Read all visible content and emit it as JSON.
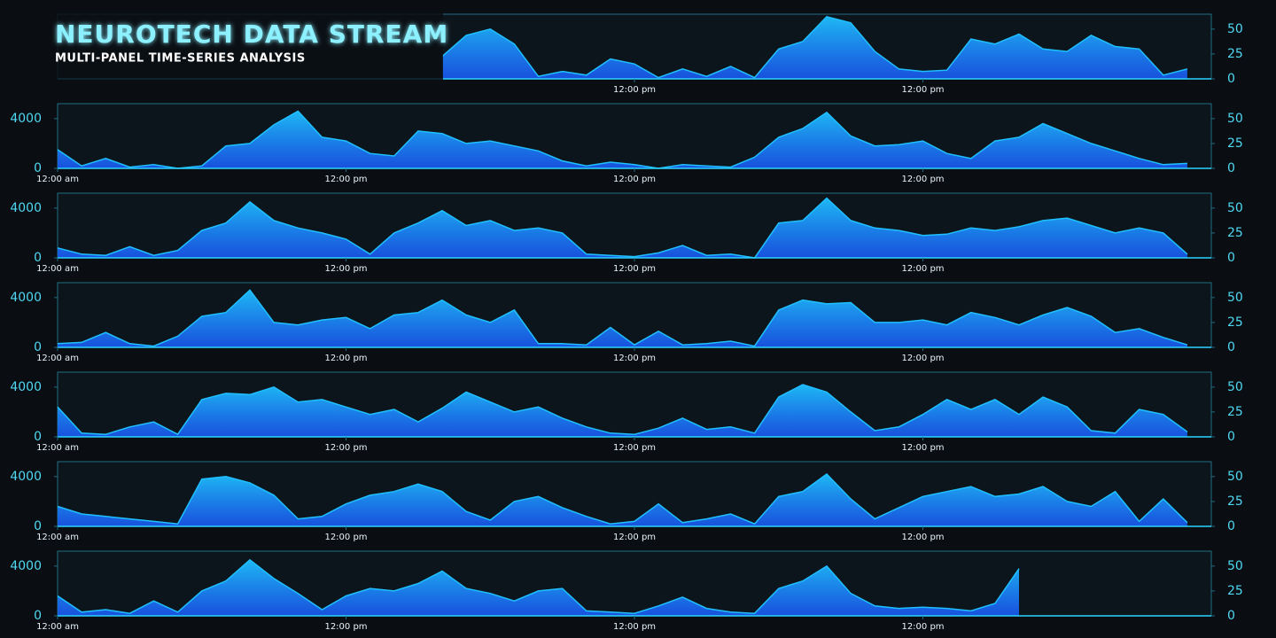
{
  "title": "NEUROTECH DATA STREAM",
  "subtitle": "MULTI-PANEL TIME-SERIES ANALYSIS",
  "chart_data": [
    {
      "type": "area",
      "color": "#1fc0ff",
      "xlim": [
        0,
        48
      ],
      "ylim": [
        0,
        5200
      ],
      "y2lim": [
        0,
        65
      ],
      "y2ticks": [
        0,
        25,
        50
      ],
      "xticks": [
        {
          "value": 24,
          "label": "12:00 pm"
        },
        {
          "value": 36,
          "label": "12:00 pm"
        }
      ],
      "x": [
        16,
        17,
        18,
        19,
        20,
        21,
        22,
        23,
        24,
        25,
        26,
        27,
        28,
        29,
        30,
        31,
        32,
        33,
        34,
        35,
        36,
        37,
        38,
        39,
        40,
        41,
        42,
        43,
        44,
        45,
        46,
        47
      ],
      "values": [
        1800,
        3500,
        4000,
        2800,
        200,
        600,
        300,
        1600,
        1200,
        100,
        800,
        200,
        1000,
        100,
        2400,
        3000,
        5000,
        4500,
        2200,
        800,
        600,
        700,
        3200,
        2800,
        3600,
        2400,
        2200,
        3500,
        2600,
        2400,
        300,
        800
      ]
    },
    {
      "type": "area",
      "color": "#1fc0ff",
      "xlim": [
        0,
        48
      ],
      "ylim": [
        0,
        5200
      ],
      "yticks": [
        0,
        4000
      ],
      "y2lim": [
        0,
        65
      ],
      "y2ticks": [
        0,
        25,
        50
      ],
      "xticks": [
        {
          "value": 0,
          "label": "12:00 am"
        },
        {
          "value": 12,
          "label": "12:00 pm"
        },
        {
          "value": 24,
          "label": "12:00 pm"
        },
        {
          "value": 36,
          "label": "12:00 pm"
        }
      ],
      "x": [
        0,
        1,
        2,
        3,
        4,
        5,
        6,
        7,
        8,
        9,
        10,
        11,
        12,
        13,
        14,
        15,
        16,
        17,
        18,
        19,
        20,
        21,
        22,
        23,
        24,
        25,
        26,
        27,
        28,
        29,
        30,
        31,
        32,
        33,
        34,
        35,
        36,
        37,
        38,
        39,
        40,
        41,
        42,
        43,
        44,
        45,
        46,
        47
      ],
      "values": [
        1500,
        200,
        800,
        100,
        300,
        0,
        200,
        1800,
        2000,
        3500,
        4600,
        2500,
        2200,
        1200,
        1000,
        3000,
        2800,
        2000,
        2200,
        1800,
        1400,
        600,
        200,
        500,
        300,
        0,
        300,
        200,
        100,
        900,
        2500,
        3200,
        4500,
        2600,
        1800,
        1900,
        2200,
        1200,
        800,
        2200,
        2500,
        3600,
        2800,
        2000,
        1400,
        800,
        300,
        400
      ]
    },
    {
      "type": "area",
      "color": "#1fc0ff",
      "xlim": [
        0,
        48
      ],
      "ylim": [
        0,
        5200
      ],
      "yticks": [
        0,
        4000
      ],
      "y2lim": [
        0,
        65
      ],
      "y2ticks": [
        0,
        25,
        50
      ],
      "xticks": [
        {
          "value": 0,
          "label": "12:00 am"
        },
        {
          "value": 12,
          "label": "12:00 pm"
        },
        {
          "value": 24,
          "label": "12:00 pm"
        },
        {
          "value": 36,
          "label": "12:00 pm"
        }
      ],
      "x": [
        0,
        1,
        2,
        3,
        4,
        5,
        6,
        7,
        8,
        9,
        10,
        11,
        12,
        13,
        14,
        15,
        16,
        17,
        18,
        19,
        20,
        21,
        22,
        23,
        24,
        25,
        26,
        27,
        28,
        29,
        30,
        31,
        32,
        33,
        34,
        35,
        36,
        37,
        38,
        39,
        40,
        41,
        42,
        43,
        44,
        45,
        46,
        47
      ],
      "values": [
        800,
        300,
        200,
        900,
        200,
        600,
        2200,
        2800,
        4500,
        3000,
        2400,
        2000,
        1500,
        300,
        2000,
        2800,
        3800,
        2600,
        3000,
        2200,
        2400,
        2000,
        300,
        200,
        100,
        400,
        1000,
        200,
        300,
        0,
        2800,
        3000,
        4800,
        3000,
        2400,
        2200,
        1800,
        1900,
        2400,
        2200,
        2500,
        3000,
        3200,
        2600,
        2000,
        2400,
        2000,
        300
      ]
    },
    {
      "type": "area",
      "color": "#1fc0ff",
      "xlim": [
        0,
        48
      ],
      "ylim": [
        0,
        5200
      ],
      "yticks": [
        0,
        4000
      ],
      "y2lim": [
        0,
        65
      ],
      "y2ticks": [
        0,
        25,
        50
      ],
      "xticks": [
        {
          "value": 0,
          "label": "12:00 am"
        },
        {
          "value": 12,
          "label": "12:00 pm"
        },
        {
          "value": 24,
          "label": "12:00 pm"
        },
        {
          "value": 36,
          "label": "12:00 pm"
        }
      ],
      "x": [
        0,
        1,
        2,
        3,
        4,
        5,
        6,
        7,
        8,
        9,
        10,
        11,
        12,
        13,
        14,
        15,
        16,
        17,
        18,
        19,
        20,
        21,
        22,
        23,
        24,
        25,
        26,
        27,
        28,
        29,
        30,
        31,
        32,
        33,
        34,
        35,
        36,
        37,
        38,
        39,
        40,
        41,
        42,
        43,
        44,
        45,
        46,
        47
      ],
      "values": [
        300,
        400,
        1200,
        300,
        100,
        900,
        2500,
        2800,
        4600,
        2000,
        1800,
        2200,
        2400,
        1500,
        2600,
        2800,
        3800,
        2600,
        2000,
        3000,
        300,
        300,
        200,
        1600,
        200,
        1300,
        200,
        300,
        500,
        100,
        3000,
        3800,
        3500,
        3600,
        2000,
        2000,
        2200,
        1800,
        2800,
        2400,
        1800,
        2600,
        3200,
        2500,
        1200,
        1500,
        800,
        200
      ]
    },
    {
      "type": "area",
      "color": "#1fc0ff",
      "xlim": [
        0,
        48
      ],
      "ylim": [
        0,
        5200
      ],
      "yticks": [
        0,
        4000
      ],
      "y2lim": [
        0,
        65
      ],
      "y2ticks": [
        0,
        25,
        50
      ],
      "xticks": [
        {
          "value": 0,
          "label": "12:00 am"
        },
        {
          "value": 12,
          "label": "12:00 pm"
        },
        {
          "value": 24,
          "label": "12:00 pm"
        },
        {
          "value": 36,
          "label": "12:00 pm"
        }
      ],
      "x": [
        0,
        1,
        2,
        3,
        4,
        5,
        6,
        7,
        8,
        9,
        10,
        11,
        12,
        13,
        14,
        15,
        16,
        17,
        18,
        19,
        20,
        21,
        22,
        23,
        24,
        25,
        26,
        27,
        28,
        29,
        30,
        31,
        32,
        33,
        34,
        35,
        36,
        37,
        38,
        39,
        40,
        41,
        42,
        43,
        44,
        45,
        46,
        47
      ],
      "values": [
        2400,
        300,
        200,
        800,
        1200,
        200,
        3000,
        3500,
        3400,
        4000,
        2800,
        3000,
        2400,
        1800,
        2200,
        1200,
        2300,
        3600,
        2800,
        2000,
        2400,
        1500,
        800,
        300,
        200,
        700,
        1500,
        600,
        800,
        300,
        3200,
        4200,
        3600,
        2000,
        500,
        800,
        1800,
        3000,
        2200,
        3000,
        1800,
        3200,
        2400,
        500,
        300,
        2200,
        1800,
        400
      ]
    },
    {
      "type": "area",
      "color": "#1fc0ff",
      "xlim": [
        0,
        48
      ],
      "ylim": [
        0,
        5200
      ],
      "yticks": [
        0,
        4000
      ],
      "y2lim": [
        0,
        65
      ],
      "y2ticks": [
        0,
        25,
        50
      ],
      "xticks": [
        {
          "value": 0,
          "label": "12:00 am"
        },
        {
          "value": 12,
          "label": "12:00 pm"
        },
        {
          "value": 24,
          "label": "12:00 pm"
        },
        {
          "value": 36,
          "label": "12:00 pm"
        }
      ],
      "x": [
        0,
        1,
        2,
        3,
        4,
        5,
        6,
        7,
        8,
        9,
        10,
        11,
        12,
        13,
        14,
        15,
        16,
        17,
        18,
        19,
        20,
        21,
        22,
        23,
        24,
        25,
        26,
        27,
        28,
        29,
        30,
        31,
        32,
        33,
        34,
        35,
        36,
        37,
        38,
        39,
        40,
        41,
        42,
        43,
        44,
        45,
        46,
        47
      ],
      "values": [
        1600,
        1000,
        800,
        600,
        400,
        200,
        3800,
        4000,
        3500,
        2500,
        600,
        800,
        1800,
        2500,
        2800,
        3400,
        2800,
        1200,
        500,
        2000,
        2400,
        1500,
        800,
        200,
        400,
        1800,
        300,
        600,
        1000,
        200,
        2400,
        2800,
        4200,
        2200,
        600,
        1500,
        2400,
        2800,
        3200,
        2400,
        2600,
        3200,
        2000,
        1600,
        2800,
        400,
        2200,
        300
      ]
    },
    {
      "type": "area",
      "color": "#1fc0ff",
      "xlim": [
        0,
        48
      ],
      "ylim": [
        0,
        5200
      ],
      "yticks": [
        0,
        4000
      ],
      "y2lim": [
        0,
        65
      ],
      "y2ticks": [
        0,
        25,
        50
      ],
      "xticks": [
        {
          "value": 0,
          "label": "12:00 am"
        },
        {
          "value": 12,
          "label": "12:00 pm"
        },
        {
          "value": 24,
          "label": "12:00 pm"
        },
        {
          "value": 36,
          "label": "12:00 pm"
        }
      ],
      "x": [
        0,
        1,
        2,
        3,
        4,
        5,
        6,
        7,
        8,
        9,
        10,
        11,
        12,
        13,
        14,
        15,
        16,
        17,
        18,
        19,
        20,
        21,
        22,
        23,
        24,
        25,
        26,
        27,
        28,
        29,
        30,
        31,
        32,
        33,
        34,
        35,
        36,
        37,
        38,
        39,
        40,
        41,
        42,
        43,
        44,
        45,
        46,
        47
      ],
      "values": [
        1600,
        300,
        500,
        200,
        1200,
        300,
        2000,
        2800,
        4500,
        3000,
        1800,
        500,
        1600,
        2200,
        2000,
        2600,
        3600,
        2200,
        1800,
        1200,
        2000,
        2200,
        400,
        300,
        200,
        800,
        1500,
        600,
        300,
        200,
        2200,
        2800,
        4000,
        1800,
        800,
        600,
        700,
        600,
        400,
        1000,
        3800,
        null,
        null,
        null,
        null,
        null,
        null,
        null
      ]
    }
  ]
}
